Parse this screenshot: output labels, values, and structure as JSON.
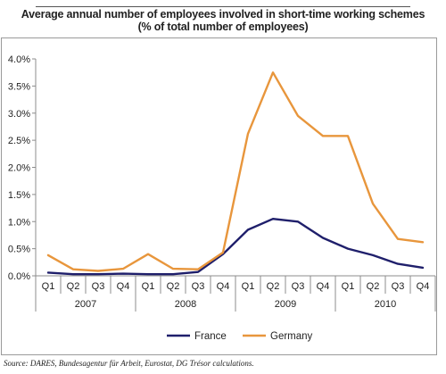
{
  "chart_data": {
    "type": "line",
    "title": "Average annual number of employees involved in short-time working schemes",
    "subtitle": "(% of total number of employees)",
    "xlabel": "",
    "ylabel": "",
    "quarters": [
      "Q1",
      "Q2",
      "Q3",
      "Q4",
      "Q1",
      "Q2",
      "Q3",
      "Q4",
      "Q1",
      "Q2",
      "Q3",
      "Q4",
      "Q1",
      "Q2",
      "Q3",
      "Q4"
    ],
    "years": [
      "2007",
      "2008",
      "2009",
      "2010"
    ],
    "yticks": [
      "0.0%",
      "0.5%",
      "1.0%",
      "1.5%",
      "2.0%",
      "2.5%",
      "3.0%",
      "3.5%",
      "4.0%"
    ],
    "ylim": [
      0,
      4.0
    ],
    "grid": false,
    "legend_position": "bottom",
    "series": [
      {
        "name": "France",
        "color": "#1f1f6b",
        "values": [
          0.06,
          0.03,
          0.03,
          0.04,
          0.03,
          0.03,
          0.07,
          0.4,
          0.85,
          1.05,
          1.0,
          0.7,
          0.5,
          0.38,
          0.22,
          0.15
        ]
      },
      {
        "name": "Germany",
        "color": "#e8963c",
        "values": [
          0.38,
          0.12,
          0.09,
          0.13,
          0.4,
          0.13,
          0.12,
          0.43,
          2.62,
          3.75,
          2.95,
          2.58,
          2.58,
          1.33,
          0.68,
          0.62
        ]
      }
    ]
  },
  "source": "Source: DARES, Bundesagentur für Arbeit, Eurostat, DG Trésor calculations."
}
